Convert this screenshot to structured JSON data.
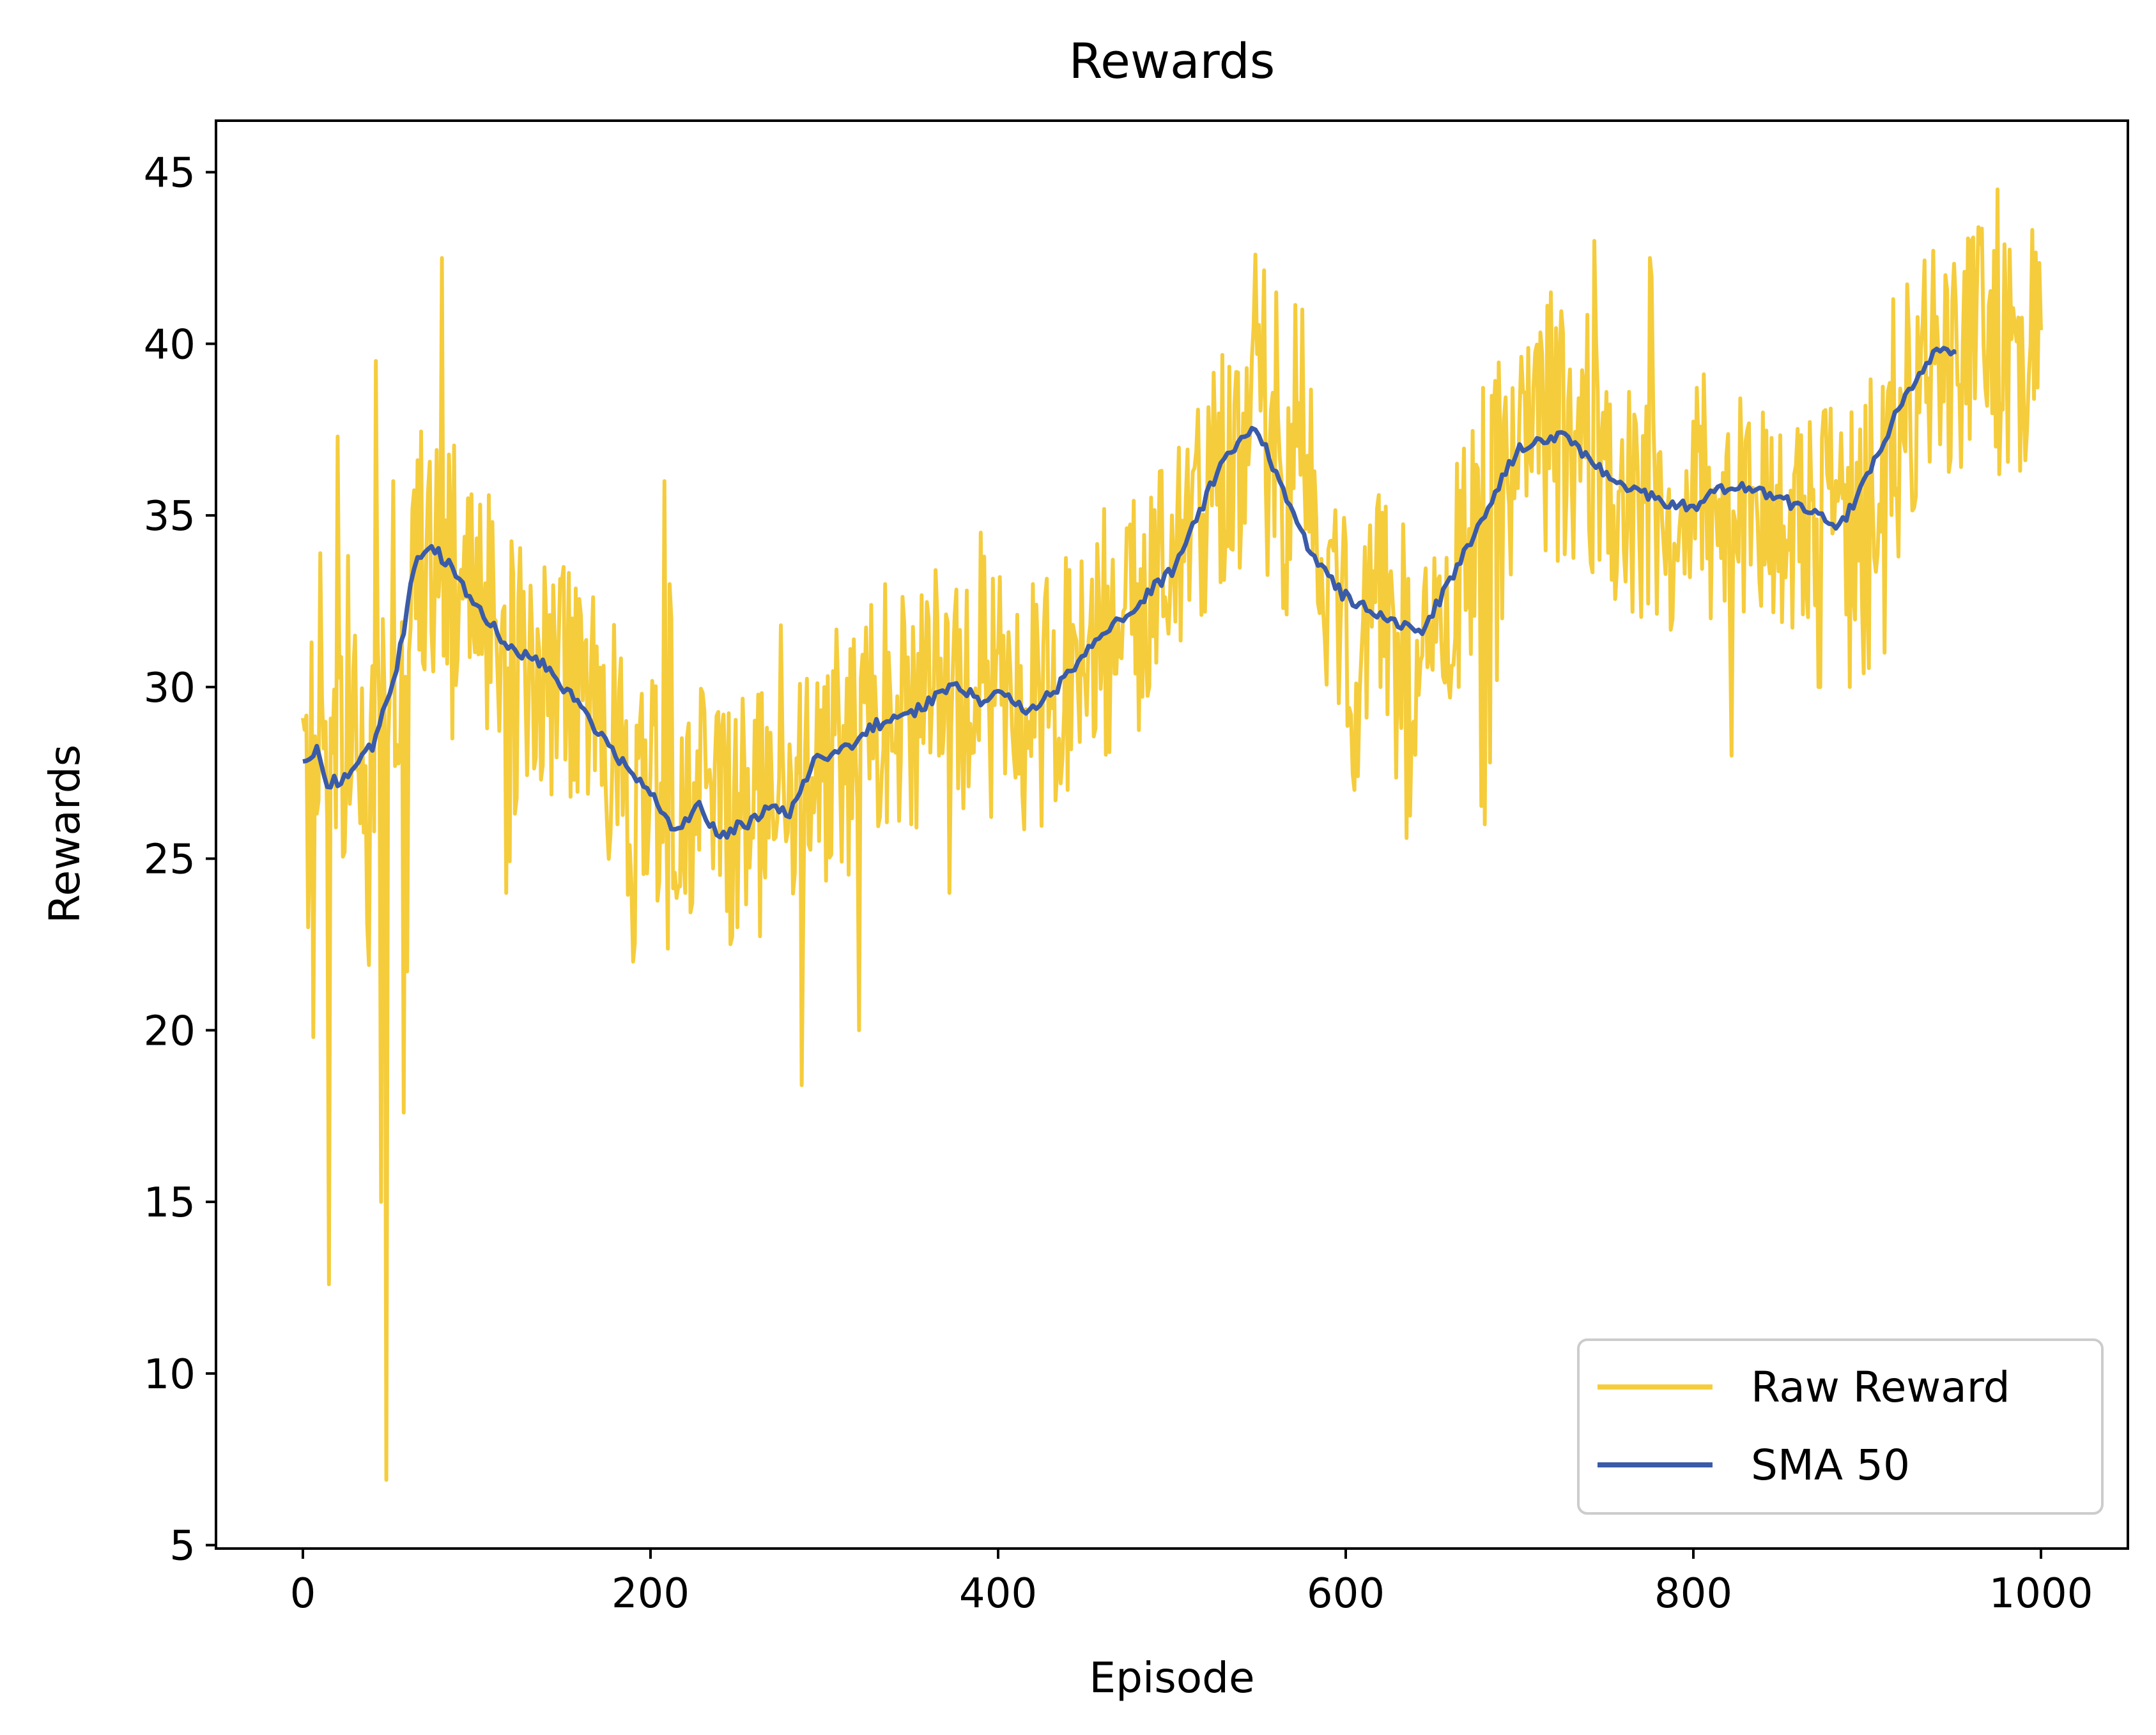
{
  "chart_data": {
    "type": "line",
    "title": "Rewards",
    "xlabel": "Episode",
    "ylabel": "Rewards",
    "xlim": [
      -50,
      1050
    ],
    "ylim": [
      4.9,
      46.5
    ],
    "x_ticks": [
      0,
      200,
      400,
      600,
      800,
      1000
    ],
    "y_ticks": [
      5,
      10,
      15,
      20,
      25,
      30,
      35,
      40,
      45
    ],
    "legend_position": "lower-right",
    "series": [
      {
        "name": "Raw Reward",
        "color": "#f5cc3c",
        "key_points": [
          [
            0,
            29.1
          ],
          [
            3,
            23
          ],
          [
            6,
            19.8
          ],
          [
            10,
            33.9
          ],
          [
            14,
            26
          ],
          [
            15,
            12.6
          ],
          [
            20,
            37.3
          ],
          [
            30,
            31.5
          ],
          [
            38,
            21.9
          ],
          [
            42,
            39.5
          ],
          [
            45,
            15
          ],
          [
            48,
            6.9
          ],
          [
            52,
            36
          ],
          [
            58,
            17.6
          ],
          [
            65,
            32
          ],
          [
            80,
            42.5
          ],
          [
            86,
            28.5
          ],
          [
            95,
            35.5
          ],
          [
            110,
            32
          ],
          [
            117,
            24
          ],
          [
            130,
            30
          ],
          [
            150,
            33.5
          ],
          [
            175,
            26
          ],
          [
            190,
            22
          ],
          [
            200,
            27.5
          ],
          [
            208,
            36
          ],
          [
            220,
            24
          ],
          [
            235,
            27
          ],
          [
            250,
            23
          ],
          [
            265,
            25
          ],
          [
            275,
            31.8
          ],
          [
            287,
            18.4
          ],
          [
            300,
            30
          ],
          [
            320,
            20
          ],
          [
            335,
            33
          ],
          [
            350,
            26
          ],
          [
            360,
            32
          ],
          [
            372,
            24
          ],
          [
            390,
            34.5
          ],
          [
            400,
            31
          ],
          [
            420,
            33
          ],
          [
            440,
            27
          ],
          [
            460,
            31
          ],
          [
            480,
            33
          ],
          [
            500,
            35
          ],
          [
            520,
            34.5
          ],
          [
            535,
            34
          ],
          [
            548,
            42.6
          ],
          [
            560,
            41.5
          ],
          [
            575,
            41
          ],
          [
            590,
            34
          ],
          [
            605,
            27
          ],
          [
            620,
            30
          ],
          [
            635,
            25.6
          ],
          [
            650,
            30.5
          ],
          [
            665,
            30
          ],
          [
            680,
            26
          ],
          [
            700,
            38
          ],
          [
            718,
            41.5
          ],
          [
            730,
            36
          ],
          [
            743,
            43
          ],
          [
            760,
            34
          ],
          [
            775,
            42.5
          ],
          [
            790,
            34
          ],
          [
            810,
            32
          ],
          [
            822,
            28
          ],
          [
            840,
            38
          ],
          [
            855,
            34
          ],
          [
            872,
            30
          ],
          [
            890,
            30
          ],
          [
            910,
            31
          ],
          [
            930,
            38
          ],
          [
            945,
            42
          ],
          [
            960,
            43
          ],
          [
            975,
            44.5
          ],
          [
            990,
            38.5
          ],
          [
            1000,
            40.4
          ]
        ]
      },
      {
        "name": "SMA 50",
        "color": "#3a5ba8",
        "key_points": [
          [
            0,
            27.8
          ],
          [
            8,
            28.2
          ],
          [
            14,
            27.2
          ],
          [
            25,
            27.3
          ],
          [
            40,
            28.3
          ],
          [
            55,
            30.8
          ],
          [
            65,
            33.8
          ],
          [
            74,
            34.1
          ],
          [
            85,
            33.5
          ],
          [
            100,
            32.3
          ],
          [
            120,
            31.1
          ],
          [
            140,
            30.6
          ],
          [
            160,
            29.4
          ],
          [
            180,
            28
          ],
          [
            200,
            26.9
          ],
          [
            215,
            25.7
          ],
          [
            228,
            26.5
          ],
          [
            240,
            25.7
          ],
          [
            258,
            26.1
          ],
          [
            270,
            26.5
          ],
          [
            280,
            26.3
          ],
          [
            295,
            27.9
          ],
          [
            315,
            28.3
          ],
          [
            330,
            28.9
          ],
          [
            350,
            29.2
          ],
          [
            375,
            30.1
          ],
          [
            390,
            29.6
          ],
          [
            400,
            29.8
          ],
          [
            420,
            29.3
          ],
          [
            440,
            30.3
          ],
          [
            460,
            31.5
          ],
          [
            480,
            32.4
          ],
          [
            500,
            33.4
          ],
          [
            515,
            35
          ],
          [
            530,
            36.7
          ],
          [
            548,
            37.6
          ],
          [
            565,
            35.7
          ],
          [
            580,
            33.8
          ],
          [
            598,
            32.7
          ],
          [
            615,
            32.2
          ],
          [
            630,
            31.8
          ],
          [
            645,
            31.7
          ],
          [
            660,
            33.1
          ],
          [
            680,
            35.1
          ],
          [
            700,
            37
          ],
          [
            710,
            37.2
          ],
          [
            725,
            37.3
          ],
          [
            740,
            36.6
          ],
          [
            765,
            35.7
          ],
          [
            785,
            35.4
          ],
          [
            800,
            35.2
          ],
          [
            815,
            35.8
          ],
          [
            835,
            35.8
          ],
          [
            850,
            35.5
          ],
          [
            870,
            35
          ],
          [
            885,
            34.7
          ],
          [
            900,
            36.1
          ],
          [
            915,
            37.8
          ],
          [
            930,
            39.2
          ],
          [
            940,
            39.8
          ],
          [
            950,
            39.7
          ]
        ]
      }
    ]
  }
}
